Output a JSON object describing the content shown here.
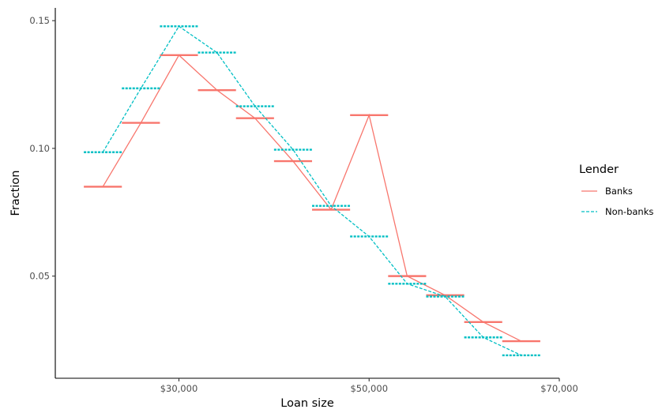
{
  "chart_data": {
    "type": "line",
    "title": "",
    "xlabel": "Loan size",
    "ylabel": "Fraction",
    "xlim": [
      17000,
      70000
    ],
    "ylim": [
      0.01,
      0.155
    ],
    "x_ticks": [
      {
        "value": 30000,
        "label": "$30,000"
      },
      {
        "value": 50000,
        "label": "$50,000"
      },
      {
        "value": 70000,
        "label": "$70,000"
      }
    ],
    "y_ticks": [
      {
        "value": 0.05,
        "label": "0.05"
      },
      {
        "value": 0.1,
        "label": "0.10"
      },
      {
        "value": 0.15,
        "label": "0.15"
      }
    ],
    "grid": false,
    "legend": {
      "title": "Lender",
      "position": "right"
    },
    "series": [
      {
        "name": "Banks",
        "color": "#F8766D",
        "style": "solid",
        "points": [
          {
            "x": 22000,
            "y": 0.085
          },
          {
            "x": 26000,
            "y": 0.11
          },
          {
            "x": 30000,
            "y": 0.1365
          },
          {
            "x": 34000,
            "y": 0.1228
          },
          {
            "x": 38000,
            "y": 0.1118
          },
          {
            "x": 42000,
            "y": 0.095
          },
          {
            "x": 46000,
            "y": 0.076
          },
          {
            "x": 50000,
            "y": 0.113
          },
          {
            "x": 54000,
            "y": 0.05
          },
          {
            "x": 58000,
            "y": 0.0425
          },
          {
            "x": 62000,
            "y": 0.032
          },
          {
            "x": 66000,
            "y": 0.0245
          }
        ]
      },
      {
        "name": "Non-banks",
        "color": "#00BFC4",
        "style": "dashed",
        "points": [
          {
            "x": 22000,
            "y": 0.0985
          },
          {
            "x": 26000,
            "y": 0.1235
          },
          {
            "x": 30000,
            "y": 0.1478
          },
          {
            "x": 34000,
            "y": 0.1375
          },
          {
            "x": 38000,
            "y": 0.1165
          },
          {
            "x": 42000,
            "y": 0.0995
          },
          {
            "x": 46000,
            "y": 0.0775
          },
          {
            "x": 50000,
            "y": 0.0655
          },
          {
            "x": 54000,
            "y": 0.047
          },
          {
            "x": 58000,
            "y": 0.042
          },
          {
            "x": 62000,
            "y": 0.026
          },
          {
            "x": 66000,
            "y": 0.019
          }
        ]
      }
    ]
  }
}
